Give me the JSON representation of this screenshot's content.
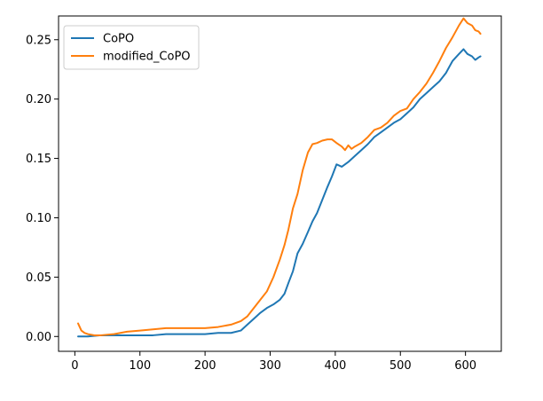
{
  "chart_data": {
    "type": "line",
    "title": "",
    "xlabel": "",
    "ylabel": "",
    "xlim": [
      -25,
      655
    ],
    "ylim": [
      -0.0125,
      0.27
    ],
    "grid": false,
    "legend_position": "top-left",
    "x_ticks": [
      0,
      100,
      200,
      300,
      400,
      500,
      600
    ],
    "x_tick_labels": [
      "0",
      "100",
      "200",
      "300",
      "400",
      "500",
      "600"
    ],
    "y_ticks": [
      0.0,
      0.05,
      0.1,
      0.15,
      0.2,
      0.25
    ],
    "y_tick_labels": [
      "0.00",
      "0.05",
      "0.10",
      "0.15",
      "0.20",
      "0.25"
    ],
    "series": [
      {
        "name": "CoPO",
        "color": "#1f77b4",
        "x": [
          5,
          20,
          40,
          60,
          80,
          100,
          120,
          140,
          160,
          180,
          200,
          220,
          240,
          255,
          265,
          275,
          285,
          295,
          305,
          315,
          322,
          328,
          335,
          342,
          350,
          358,
          365,
          372,
          380,
          388,
          395,
          402,
          410,
          420,
          430,
          440,
          450,
          460,
          470,
          480,
          490,
          500,
          510,
          520,
          530,
          540,
          550,
          560,
          570,
          580,
          590,
          597,
          603,
          610,
          615,
          620,
          623
        ],
        "y": [
          0.0,
          0.0,
          0.001,
          0.001,
          0.001,
          0.001,
          0.001,
          0.002,
          0.002,
          0.002,
          0.002,
          0.003,
          0.003,
          0.005,
          0.01,
          0.015,
          0.02,
          0.024,
          0.027,
          0.031,
          0.036,
          0.045,
          0.055,
          0.07,
          0.078,
          0.088,
          0.097,
          0.104,
          0.115,
          0.126,
          0.135,
          0.145,
          0.143,
          0.147,
          0.152,
          0.157,
          0.162,
          0.168,
          0.172,
          0.176,
          0.18,
          0.183,
          0.188,
          0.193,
          0.2,
          0.205,
          0.21,
          0.215,
          0.222,
          0.232,
          0.238,
          0.242,
          0.238,
          0.236,
          0.233,
          0.235,
          0.236
        ]
      },
      {
        "name": "modified_CoPO",
        "color": "#ff7f0e",
        "x": [
          5,
          10,
          15,
          20,
          30,
          40,
          60,
          80,
          100,
          120,
          140,
          160,
          180,
          200,
          220,
          240,
          255,
          265,
          275,
          285,
          295,
          305,
          315,
          322,
          328,
          335,
          342,
          350,
          358,
          365,
          372,
          380,
          388,
          395,
          402,
          410,
          415,
          420,
          425,
          430,
          440,
          450,
          460,
          470,
          480,
          490,
          500,
          510,
          520,
          530,
          540,
          550,
          560,
          570,
          580,
          590,
          597,
          603,
          610,
          615,
          620,
          623
        ],
        "y": [
          0.011,
          0.005,
          0.003,
          0.002,
          0.001,
          0.001,
          0.002,
          0.004,
          0.005,
          0.006,
          0.007,
          0.007,
          0.007,
          0.007,
          0.008,
          0.01,
          0.013,
          0.017,
          0.024,
          0.031,
          0.038,
          0.05,
          0.065,
          0.077,
          0.09,
          0.108,
          0.12,
          0.14,
          0.155,
          0.162,
          0.163,
          0.165,
          0.166,
          0.166,
          0.163,
          0.16,
          0.157,
          0.161,
          0.158,
          0.16,
          0.163,
          0.168,
          0.174,
          0.176,
          0.18,
          0.186,
          0.19,
          0.192,
          0.2,
          0.206,
          0.213,
          0.222,
          0.232,
          0.243,
          0.252,
          0.262,
          0.268,
          0.264,
          0.262,
          0.258,
          0.257,
          0.255
        ]
      }
    ]
  }
}
